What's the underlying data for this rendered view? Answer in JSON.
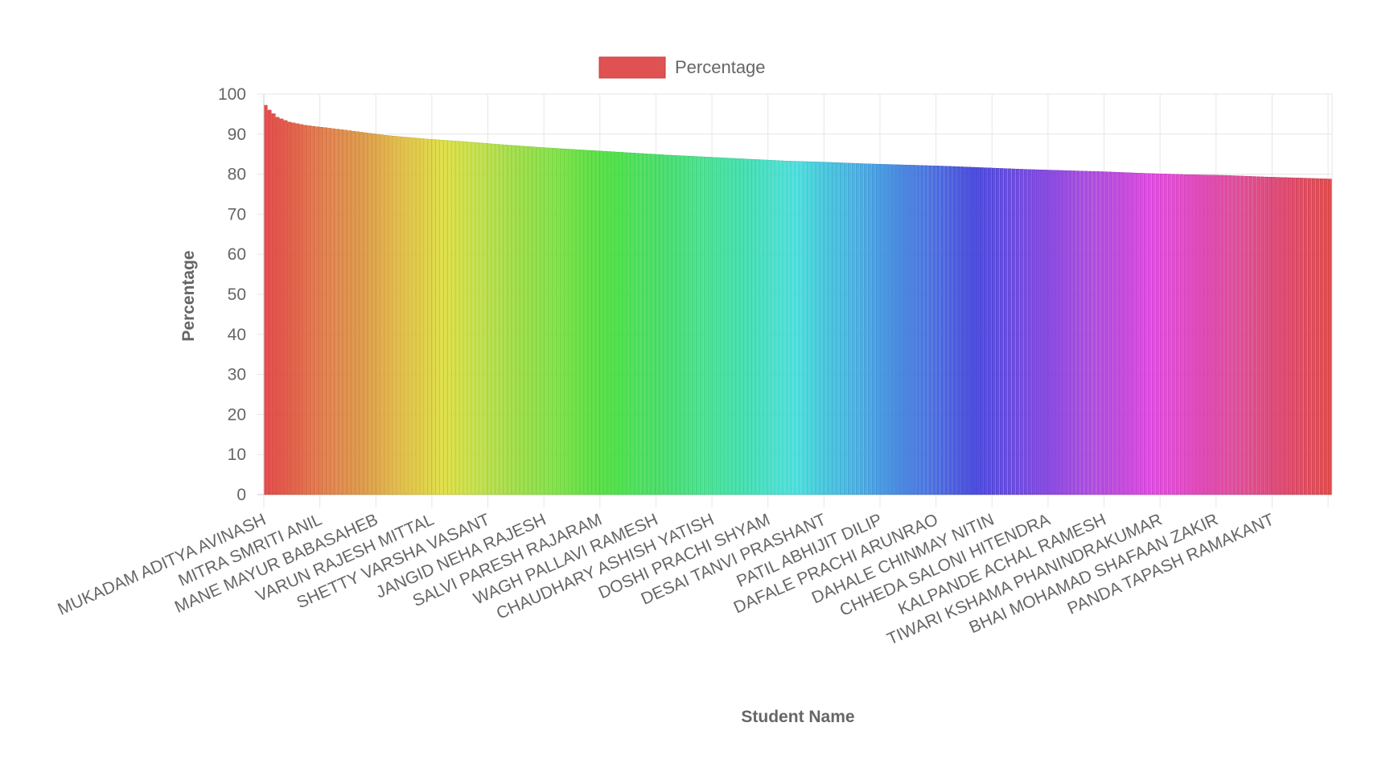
{
  "chart_data": {
    "type": "bar",
    "xlabel": "Student Name",
    "ylabel": "Percentage",
    "ylim": [
      0,
      100
    ],
    "ytick_step": 10,
    "grid": true,
    "legend": {
      "position": "top",
      "entries": [
        {
          "label": "Percentage",
          "color": "#e05252"
        }
      ]
    },
    "categories": [
      "MUKADAM ADITYA AVINASH",
      "MITRA SMRITI ANIL",
      "MANE MAYUR BABASAHEB",
      "VARUN RAJESH MITTAL",
      "SHETTY VARSHA VASANT",
      "JANGID NEHA RAJESH",
      "SALVI PARESH RAJARAM",
      "WAGH PALLAVI RAMESH",
      "CHAUDHARY ASHISH YATISH",
      "DOSHI PRACHI SHYAM",
      "DESAI TANVI PRASHANT",
      "PATIL ABHIJIT DILIP",
      "DAFALE PRACHI ARUNRAO",
      "DAHALE CHINMAY NITIN",
      "CHHEDA SALONI HITENDRA",
      "KALPANDE ACHAL RAMESH",
      "TIWARI KSHAMA PHANINDRAKUMAR",
      "BHAI MOHAMAD SHAFAAN ZAKIR",
      "PANDA TAPASH RAMAKANT"
    ],
    "profile": [
      [
        0,
        97.2
      ],
      [
        1,
        96.0
      ],
      [
        3,
        94.2
      ],
      [
        6,
        93.0
      ],
      [
        10,
        92.2
      ],
      [
        20,
        91.0
      ],
      [
        30,
        89.7
      ],
      [
        40,
        88.8
      ],
      [
        50,
        88.1
      ],
      [
        60,
        87.3
      ],
      [
        70,
        86.6
      ],
      [
        80,
        86.0
      ],
      [
        90,
        85.4
      ],
      [
        100,
        84.8
      ],
      [
        110,
        84.3
      ],
      [
        120,
        83.8
      ],
      [
        130,
        83.3
      ],
      [
        140,
        83.0
      ],
      [
        150,
        82.6
      ],
      [
        160,
        82.3
      ],
      [
        170,
        82.0
      ],
      [
        180,
        81.6
      ],
      [
        190,
        81.2
      ],
      [
        200,
        80.9
      ],
      [
        210,
        80.6
      ],
      [
        220,
        80.2
      ],
      [
        230,
        79.9
      ],
      [
        240,
        79.7
      ],
      [
        250,
        79.3
      ],
      [
        260,
        79.0
      ],
      [
        266,
        78.8
      ]
    ],
    "colors": {
      "gradient_hue_start": 0,
      "gradient_hue_end": 360,
      "grid": "#e6e6e6",
      "axis": "#cccccc",
      "text": "#666666"
    }
  }
}
